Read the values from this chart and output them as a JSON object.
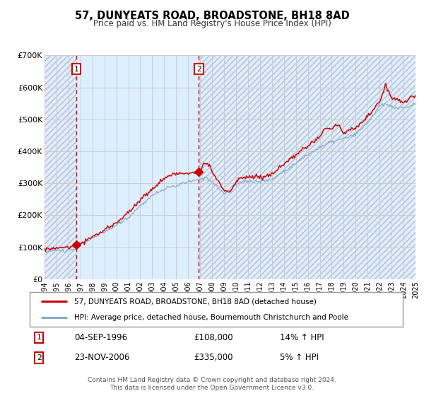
{
  "title": "57, DUNYEATS ROAD, BROADSTONE, BH18 8AD",
  "subtitle": "Price paid vs. HM Land Registry's House Price Index (HPI)",
  "sale1_date": "04-SEP-1996",
  "sale1_price": 108000,
  "sale1_hpi_pct": "14%",
  "sale2_date": "23-NOV-2006",
  "sale2_price": 335000,
  "sale2_hpi_pct": "5%",
  "sale1_year": 1996.67,
  "sale2_year": 2006.9,
  "red_line_color": "#cc0000",
  "blue_line_color": "#88aacc",
  "vline_color": "#cc0000",
  "shade_color": "#ddeeff",
  "hatch_color": "#bbbbcc",
  "legend_label_red": "57, DUNYEATS ROAD, BROADSTONE, BH18 8AD (detached house)",
  "legend_label_blue": "HPI: Average price, detached house, Bournemouth Christchurch and Poole",
  "footer1": "Contains HM Land Registry data © Crown copyright and database right 2024.",
  "footer2": "This data is licensed under the Open Government Licence v3.0.",
  "ylim": [
    0,
    700000
  ],
  "xlim": [
    1994,
    2025
  ],
  "yticks": [
    0,
    100000,
    200000,
    300000,
    400000,
    500000,
    600000,
    700000
  ],
  "ytick_labels": [
    "£0",
    "£100K",
    "£200K",
    "£300K",
    "£400K",
    "£500K",
    "£600K",
    "£700K"
  ],
  "xticks": [
    1994,
    1995,
    1996,
    1997,
    1998,
    1999,
    2000,
    2001,
    2002,
    2003,
    2004,
    2005,
    2006,
    2007,
    2008,
    2009,
    2010,
    2011,
    2012,
    2013,
    2014,
    2015,
    2016,
    2017,
    2018,
    2019,
    2020,
    2021,
    2022,
    2023,
    2024,
    2025
  ]
}
